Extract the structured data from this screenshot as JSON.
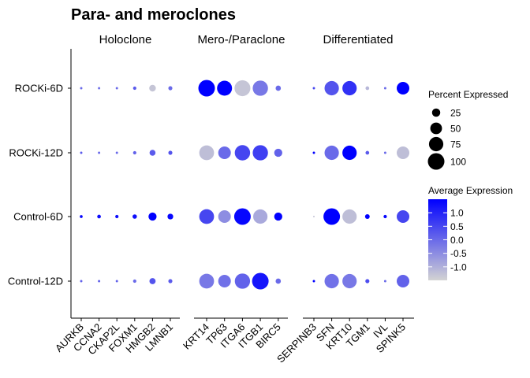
{
  "chart_data": {
    "type": "dot",
    "title": "Para- and meroclones",
    "xlabel": "",
    "ylabel": "",
    "rows": [
      "Control-12D",
      "Control-6D",
      "ROCKi-12D",
      "ROCKi-6D"
    ],
    "panels": [
      {
        "name": "Holoclone",
        "genes": [
          "AURKB",
          "CCNA2",
          "CKAP2L",
          "FOXM1",
          "HMGB2",
          "LMNB1"
        ],
        "percent": {
          "ROCKi-6D": [
            2,
            2,
            2,
            4,
            16,
            6
          ],
          "ROCKi-12D": [
            2,
            2,
            2,
            4,
            13,
            6
          ],
          "Control-6D": [
            3,
            5,
            4,
            7,
            24,
            12
          ],
          "Control-12D": [
            2,
            2,
            2,
            4,
            14,
            6
          ]
        },
        "avg_exp": {
          "ROCKi-6D": [
            0.0,
            -0.1,
            0.0,
            0.2,
            -1.3,
            0.0
          ],
          "ROCKi-12D": [
            0.2,
            0.0,
            0.0,
            0.1,
            0.2,
            0.3
          ],
          "Control-6D": [
            1.4,
            1.3,
            1.3,
            1.3,
            1.5,
            1.4
          ],
          "Control-12D": [
            0.1,
            0.1,
            0.1,
            0.0,
            0.3,
            0.2
          ]
        }
      },
      {
        "name": "Mero-/Paraclone",
        "genes": [
          "KRT14",
          "TP63",
          "ITGA6",
          "ITGB1",
          "BIRC5"
        ],
        "percent": {
          "ROCKi-6D": [
            100,
            82,
            92,
            85,
            10
          ],
          "ROCKi-12D": [
            80,
            58,
            86,
            85,
            24
          ],
          "Control-6D": [
            80,
            58,
            100,
            75,
            24
          ],
          "Control-12D": [
            80,
            58,
            85,
            100,
            10
          ]
        },
        "avg_exp": {
          "ROCKi-6D": [
            1.5,
            1.5,
            -1.3,
            -0.2,
            0.0
          ],
          "ROCKi-12D": [
            -1.2,
            0.0,
            0.5,
            0.6,
            0.1
          ],
          "Control-6D": [
            0.5,
            -0.5,
            1.4,
            -0.9,
            1.5
          ],
          "Control-12D": [
            -0.2,
            -0.1,
            0.1,
            1.2,
            0.0
          ]
        }
      },
      {
        "name": "Differentiated",
        "genes": [
          "SERPINB3",
          "SFN",
          "KRT10",
          "TGM1",
          "IVL",
          "SPINK5"
        ],
        "percent": {
          "ROCKi-6D": [
            2,
            75,
            75,
            5,
            2,
            58
          ],
          "ROCKi-12D": [
            2,
            75,
            75,
            5,
            2,
            58
          ],
          "Control-6D": [
            1,
            100,
            75,
            8,
            4,
            58
          ],
          "Control-12D": [
            2,
            75,
            75,
            6,
            2,
            58
          ]
        },
        "avg_exp": {
          "ROCKi-6D": [
            0.5,
            0.3,
            0.8,
            -1.1,
            0.0,
            1.5
          ],
          "ROCKi-12D": [
            1.5,
            0.0,
            1.5,
            0.2,
            0.0,
            -1.2
          ],
          "Control-6D": [
            -1.3,
            1.5,
            -1.2,
            1.5,
            1.4,
            0.5
          ],
          "Control-12D": [
            1.5,
            -0.1,
            -0.2,
            0.4,
            0.0,
            0.1
          ]
        }
      }
    ],
    "size_legend": {
      "title": "Percent Expressed",
      "values": [
        25,
        50,
        75,
        100
      ]
    },
    "color_legend": {
      "title": "Average Expression",
      "ticks": [
        1.0,
        0.5,
        0.0,
        -0.5,
        -1.0
      ],
      "tick_labels": [
        "1.0",
        "0.5",
        "0.0",
        "-0.5",
        "-1.0"
      ],
      "range": [
        -1.5,
        1.5
      ],
      "low_color": "#d3d3d3",
      "high_color": "#0000ff"
    },
    "grid": false,
    "legend_position": "right"
  }
}
